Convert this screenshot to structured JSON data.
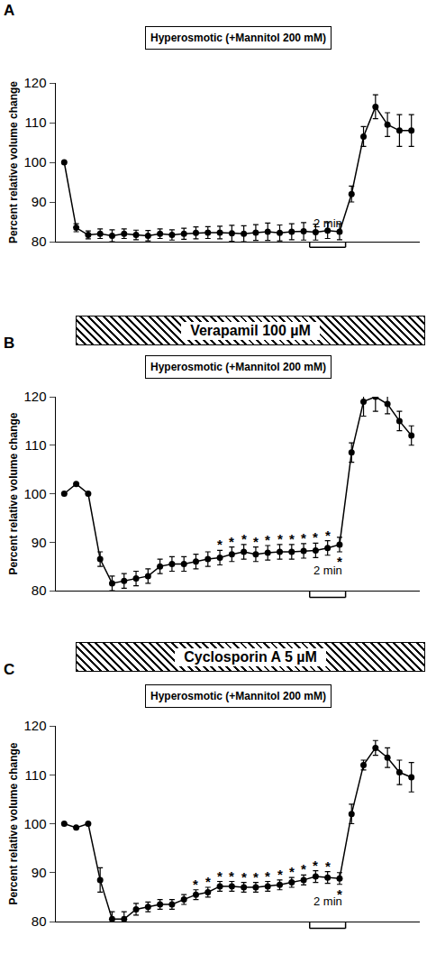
{
  "chart_data": [
    {
      "type": "line",
      "panel": "A",
      "condition": "Hyperosmotic (+Mannitol 200 mM)",
      "ylabel": "Percent relative volume change",
      "color": "#000000",
      "marker": "circle",
      "tick_labels": "y",
      "grid": false,
      "x": [
        0,
        1,
        2,
        3,
        4,
        5,
        6,
        7,
        8,
        9,
        10,
        11,
        12,
        13,
        14,
        15,
        16,
        17,
        18,
        19,
        20,
        21,
        22,
        23,
        24,
        25,
        26,
        27,
        28,
        29
      ],
      "values": [
        100,
        83.5,
        81.7,
        82,
        81.5,
        82,
        81.7,
        81.5,
        82,
        81.7,
        82,
        82.2,
        82.3,
        82.3,
        82.1,
        82,
        82.3,
        82.5,
        82.2,
        82.5,
        82.6,
        82.4,
        82.8,
        82.5,
        92,
        106.5,
        114,
        109.5,
        108,
        108
      ],
      "errors": [
        0,
        1,
        1,
        1.2,
        1.5,
        1.2,
        1.2,
        1.3,
        1.2,
        1.3,
        1.4,
        1.5,
        1.5,
        1.6,
        2,
        2,
        2,
        2.2,
        2,
        2,
        2.2,
        2,
        2,
        2,
        2,
        2.5,
        3,
        3,
        4,
        4
      ],
      "xlim": [
        -0.7,
        29.7
      ],
      "xticks": [],
      "ylim": [
        80,
        120
      ],
      "yticks": [
        80,
        90,
        100,
        110,
        120
      ],
      "annotations": [],
      "scale_bar": {
        "text": "2 min",
        "x_start": 20.5,
        "x_end": 23.5
      }
    },
    {
      "type": "line",
      "panel": "B",
      "condition": "Hyperosmotic (+Mannitol 200 mM)",
      "treatment": "Verapamil 100 µM",
      "ylabel": "Percent relative volume change",
      "color": "#000000",
      "marker": "circle",
      "tick_labels": "y",
      "grid": false,
      "x": [
        0,
        1,
        2,
        3,
        4,
        5,
        6,
        7,
        8,
        9,
        10,
        11,
        12,
        13,
        14,
        15,
        16,
        17,
        18,
        19,
        20,
        21,
        22,
        23,
        24,
        25,
        26,
        27,
        28,
        29
      ],
      "values": [
        100,
        102,
        100,
        86.5,
        81.5,
        82,
        82.5,
        83,
        85,
        85.5,
        85.5,
        86,
        86.5,
        86.8,
        87.5,
        88,
        87.5,
        87.8,
        88,
        88,
        88.2,
        88.3,
        88.8,
        89.5,
        108.5,
        119,
        120,
        118.5,
        115,
        112
      ],
      "errors": [
        0,
        0,
        0,
        1.5,
        1.5,
        1.5,
        1.5,
        1.5,
        1.5,
        1.5,
        1.5,
        1.5,
        1.5,
        1.5,
        1.5,
        1.5,
        1.5,
        1.5,
        1.5,
        1.5,
        1.5,
        1.5,
        1.5,
        1.5,
        2,
        3,
        3,
        2,
        2,
        2
      ],
      "xlim": [
        -0.7,
        29.7
      ],
      "xticks": [],
      "ylim": [
        80,
        120
      ],
      "yticks": [
        80,
        90,
        100,
        110,
        120
      ],
      "annotations": [
        {
          "x": 13,
          "text": "*",
          "position": "above"
        },
        {
          "x": 14,
          "text": "*",
          "position": "above"
        },
        {
          "x": 15,
          "text": "*",
          "position": "above"
        },
        {
          "x": 16,
          "text": "*",
          "position": "above"
        },
        {
          "x": 17,
          "text": "*",
          "position": "above"
        },
        {
          "x": 18,
          "text": "*",
          "position": "above"
        },
        {
          "x": 19,
          "text": "*",
          "position": "above"
        },
        {
          "x": 20,
          "text": "*",
          "position": "above"
        },
        {
          "x": 21,
          "text": "*",
          "position": "above"
        },
        {
          "x": 22,
          "text": "*",
          "position": "above"
        },
        {
          "x": 23,
          "text": "*",
          "position": "below"
        }
      ],
      "scale_bar": {
        "text": "2 min",
        "x_start": 20.5,
        "x_end": 23.5
      }
    },
    {
      "type": "line",
      "panel": "C",
      "condition": "Hyperosmotic (+Mannitol 200 mM)",
      "treatment": "Cyclosporin A 5 µM",
      "ylabel": "Percent relative volume change",
      "color": "#000000",
      "marker": "circle",
      "tick_labels": "y",
      "grid": false,
      "x": [
        0,
        1,
        2,
        3,
        4,
        5,
        6,
        7,
        8,
        9,
        10,
        11,
        12,
        13,
        14,
        15,
        16,
        17,
        18,
        19,
        20,
        21,
        22,
        23,
        24,
        25,
        26,
        27,
        28,
        29
      ],
      "values": [
        100,
        99.2,
        100,
        88.5,
        80.5,
        80.5,
        82.5,
        83,
        83.5,
        83.5,
        84.5,
        85.5,
        86,
        87.2,
        87.2,
        87,
        87,
        87.2,
        87.5,
        88,
        88.5,
        89.2,
        89,
        88.8,
        102,
        112,
        115.5,
        113.5,
        110.5,
        109.5
      ],
      "errors": [
        0,
        0,
        0,
        2.5,
        1.5,
        1.5,
        1.2,
        1,
        1,
        1,
        1,
        1,
        1,
        1,
        1,
        1,
        1,
        1,
        1,
        1,
        1,
        1.2,
        1.2,
        1.2,
        2,
        1,
        1.5,
        2,
        2.5,
        3
      ],
      "xlim": [
        -0.7,
        29.7
      ],
      "xticks": [],
      "ylim": [
        80,
        120
      ],
      "yticks": [
        80,
        90,
        100,
        110,
        120
      ],
      "annotations": [
        {
          "x": 11,
          "text": "*",
          "position": "above"
        },
        {
          "x": 12,
          "text": "*",
          "position": "above"
        },
        {
          "x": 13,
          "text": "*",
          "position": "above"
        },
        {
          "x": 14,
          "text": "*",
          "position": "above"
        },
        {
          "x": 15,
          "text": "*",
          "position": "above"
        },
        {
          "x": 16,
          "text": "*",
          "position": "above"
        },
        {
          "x": 17,
          "text": "*",
          "position": "above"
        },
        {
          "x": 18,
          "text": "*",
          "position": "above"
        },
        {
          "x": 19,
          "text": "*",
          "position": "above"
        },
        {
          "x": 20,
          "text": "*",
          "position": "above"
        },
        {
          "x": 21,
          "text": "*",
          "position": "above"
        },
        {
          "x": 22,
          "text": "*",
          "position": "above"
        },
        {
          "x": 23,
          "text": "*",
          "position": "below"
        }
      ],
      "scale_bar": {
        "text": "2 min",
        "x_start": 20.5,
        "x_end": 23.5
      }
    }
  ]
}
